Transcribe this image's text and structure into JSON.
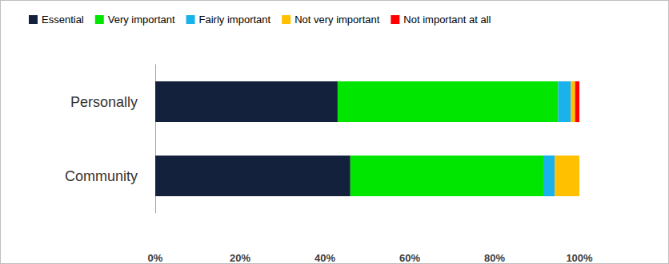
{
  "chart_data": {
    "type": "bar",
    "orientation": "horizontal",
    "stacked": true,
    "grid": false,
    "legend": "top",
    "categories": [
      "Personally",
      "Community"
    ],
    "series": [
      {
        "name": "Essential",
        "color": "#14213d",
        "values": [
          43,
          46
        ]
      },
      {
        "name": "Very important",
        "color": "#00e600",
        "values": [
          52,
          45.5
        ]
      },
      {
        "name": "Fairly important",
        "color": "#1ab2ea",
        "values": [
          3,
          2.7
        ]
      },
      {
        "name": "Not very important",
        "color": "#ffc000",
        "values": [
          1,
          5.8
        ]
      },
      {
        "name": "Not important at all",
        "color": "#ff0000",
        "values": [
          1,
          0
        ]
      }
    ],
    "xlim": [
      0,
      100
    ],
    "xticks": [
      {
        "value": 0,
        "label": "0%"
      },
      {
        "value": 20,
        "label": "20%"
      },
      {
        "value": 40,
        "label": "40%"
      },
      {
        "value": 60,
        "label": "60%"
      },
      {
        "value": 80,
        "label": "80%"
      },
      {
        "value": 100,
        "label": "100%"
      }
    ]
  }
}
